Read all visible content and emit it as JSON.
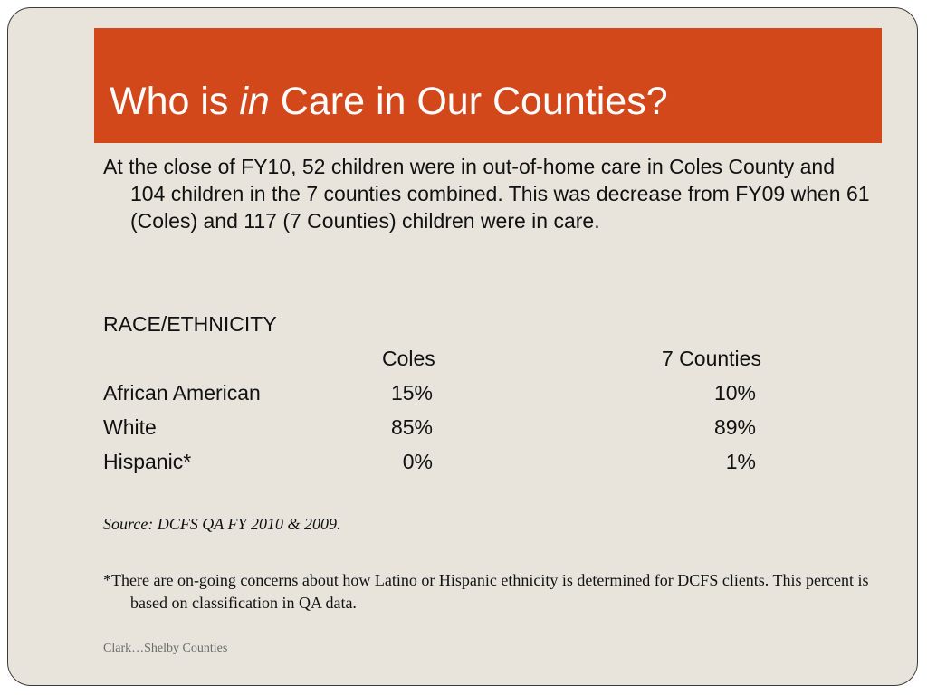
{
  "title": {
    "before": "Who is ",
    "emphasis": "in",
    "after": " Care in Our Counties?"
  },
  "intro": {
    "part1": "At the close of FY10, 52 children were in out-of-home care in Coles County and 104 children in the 7 counties combined. This was ",
    "emphasis": "decrease",
    "part2": " from FY09 when 61 (Coles) and 117 (7 Counties) children were in care."
  },
  "race_table": {
    "heading": "RACE/ETHNICITY",
    "columns": [
      "Coles",
      "7 Counties"
    ],
    "rows": [
      {
        "label": "African American",
        "coles": "15%",
        "seven": "10%"
      },
      {
        "label": "White",
        "coles": "85%",
        "seven": "89%"
      },
      {
        "label": "Hispanic*",
        "coles": "0%",
        "seven": "1%"
      }
    ]
  },
  "source": "Source: DCFS QA FY 2010 & 2009.",
  "footnote": "*There are on-going concerns about how Latino or Hispanic ethnicity is determined for DCFS clients.  This percent is based on classification in QA data.",
  "footer": "Clark…Shelby Counties",
  "colors": {
    "title_bar": "#d3481b",
    "background": "#e8e4dc"
  }
}
